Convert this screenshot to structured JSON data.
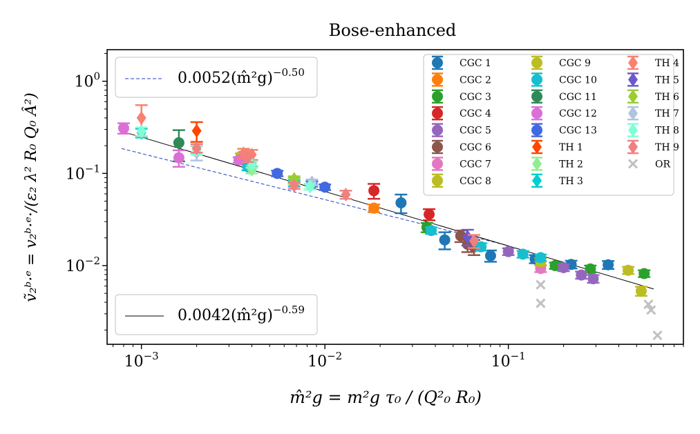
{
  "chart_data": {
    "type": "scatter",
    "title": "Bose-enhanced",
    "xlabel": "m̂²g = m²g τ₀ / (Q²₀ R₀)",
    "ylabel": "ṽ₂ᵇ·ᵉ = v₂ᵇ·ᵉ·/(ε₂ λ² R₀ Q₀ Â²)",
    "x_scale": "log",
    "y_scale": "log",
    "xlim": [
      0.00065,
      0.9
    ],
    "ylim": [
      0.0014,
      2.2
    ],
    "x_ticks": [
      {
        "value": 0.001,
        "label": "10^-3"
      },
      {
        "value": 0.01,
        "label": "10^-2"
      },
      {
        "value": 0.1,
        "label": "10^-1"
      }
    ],
    "y_ticks": [
      {
        "value": 0.01,
        "label": "10^-2"
      },
      {
        "value": 0.1,
        "label": "10^-1"
      },
      {
        "value": 1,
        "label": "10^0"
      }
    ],
    "fits": [
      {
        "name": "fit-dashed",
        "label": "0.0052(m̂²g)^-0.50",
        "coef": 0.0052,
        "exp": -0.5,
        "x_range": [
          0.00078,
          0.1
        ],
        "color": "#1f3fbf",
        "style": "dashed",
        "legend_position": "upper-left"
      },
      {
        "name": "fit-solid",
        "label": "0.0042(m̂²g)^-0.59",
        "coef": 0.0042,
        "exp": -0.59,
        "x_range": [
          0.00078,
          0.62
        ],
        "color": "#000000",
        "style": "solid",
        "legend_position": "lower-left"
      }
    ],
    "series": [
      {
        "name": "CGC 1",
        "color": "#1f77b4",
        "marker": "circle",
        "points": [
          [
            0.026,
            0.048,
            0.011
          ],
          [
            0.045,
            0.019,
            0.004
          ],
          [
            0.08,
            0.0128,
            0.0018
          ],
          [
            0.14,
            0.0118,
            0.0012
          ],
          [
            0.22,
            0.0103,
            0.001
          ],
          [
            0.35,
            0.0102,
            0.001
          ]
        ]
      },
      {
        "name": "CGC 2",
        "color": "#ff7f0e",
        "marker": "circle",
        "points": [
          [
            0.0185,
            0.042,
            0.004
          ]
        ]
      },
      {
        "name": "CGC 3",
        "color": "#2ca02c",
        "marker": "circle",
        "points": [
          [
            0.0068,
            0.083,
            0.006
          ],
          [
            0.036,
            0.026,
            0.003
          ],
          [
            0.18,
            0.01,
            0.0008
          ],
          [
            0.28,
            0.0092,
            0.0008
          ],
          [
            0.55,
            0.0082,
            0.0007
          ]
        ]
      },
      {
        "name": "CGC 4",
        "color": "#d62728",
        "marker": "circle",
        "points": [
          [
            0.0185,
            0.065,
            0.012
          ],
          [
            0.037,
            0.036,
            0.005
          ]
        ]
      },
      {
        "name": "CGC 5",
        "color": "#9467bd",
        "marker": "circle",
        "points": [
          [
            0.1,
            0.0142,
            0.0012
          ],
          [
            0.2,
            0.0095,
            0.0008
          ],
          [
            0.25,
            0.0079,
            0.0007
          ],
          [
            0.29,
            0.0072,
            0.0007
          ]
        ]
      },
      {
        "name": "CGC 6",
        "color": "#8c564b",
        "marker": "circle",
        "points": [
          [
            0.055,
            0.021,
            0.003
          ],
          [
            0.06,
            0.017,
            0.003
          ],
          [
            0.065,
            0.016,
            0.003
          ]
        ]
      },
      {
        "name": "CGC 7",
        "color": "#e377c2",
        "marker": "circle",
        "points": [
          [
            0.0036,
            0.138,
            0.01
          ],
          [
            0.15,
            0.0093,
            0.0008
          ]
        ]
      },
      {
        "name": "CGC 8",
        "color": "#bcbd22",
        "marker": "circle",
        "points": [
          [
            0.0035,
            0.155,
            0.01
          ],
          [
            0.45,
            0.0089,
            0.0008
          ],
          [
            0.53,
            0.0053,
            0.0006
          ]
        ]
      },
      {
        "name": "CGC 9",
        "color": "#bcbd22",
        "marker": "circle",
        "points": [
          [
            0.0037,
            0.16,
            0.012
          ],
          [
            0.15,
            0.011,
            0.001
          ]
        ]
      },
      {
        "name": "CGC 10",
        "color": "#17becf",
        "marker": "circle",
        "points": [
          [
            0.0038,
            0.118,
            0.01
          ],
          [
            0.0068,
            0.078,
            0.006
          ],
          [
            0.038,
            0.024,
            0.002
          ],
          [
            0.071,
            0.016,
            0.0015
          ],
          [
            0.12,
            0.0133,
            0.0011
          ],
          [
            0.15,
            0.0122,
            0.001
          ]
        ]
      },
      {
        "name": "CGC 11",
        "color": "#2e8b57",
        "marker": "circle",
        "points": [
          [
            0.0016,
            0.215,
            0.08
          ]
        ]
      },
      {
        "name": "CGC 12",
        "color": "#da70d6",
        "marker": "circle",
        "points": [
          [
            0.0008,
            0.31,
            0.04
          ],
          [
            0.0016,
            0.148,
            0.03
          ],
          [
            0.0034,
            0.14,
            0.01
          ]
        ]
      },
      {
        "name": "CGC 13",
        "color": "#4169e1",
        "marker": "circle",
        "points": [
          [
            0.0055,
            0.1,
            0.007
          ],
          [
            0.0085,
            0.077,
            0.005
          ],
          [
            0.01,
            0.071,
            0.005
          ]
        ]
      },
      {
        "name": "TH 1",
        "color": "#ff4500",
        "marker": "diamond",
        "points": [
          [
            0.002,
            0.29,
            0.07
          ]
        ]
      },
      {
        "name": "TH 2",
        "color": "#90ee90",
        "marker": "diamond",
        "points": [
          [
            0.004,
            0.11,
            0.01
          ],
          [
            0.0068,
            0.082,
            0.006
          ],
          [
            0.0083,
            0.072,
            0.005
          ]
        ]
      },
      {
        "name": "TH 3",
        "color": "#00ced1",
        "marker": "diamond",
        "points": [
          [
            0.001,
            0.275,
            0.03
          ],
          [
            0.004,
            0.128,
            0.012
          ]
        ]
      },
      {
        "name": "TH 4",
        "color": "#fa8072",
        "marker": "diamond",
        "points": [
          [
            0.001,
            0.4,
            0.15
          ],
          [
            0.0036,
            0.165,
            0.02
          ],
          [
            0.004,
            0.16,
            0.02
          ]
        ]
      },
      {
        "name": "TH 5",
        "color": "#6a5acd",
        "marker": "diamond",
        "points": [
          [
            0.06,
            0.0205,
            0.004
          ]
        ]
      },
      {
        "name": "TH 6",
        "color": "#9acd32",
        "marker": "diamond",
        "points": [
          [
            0.0068,
            0.087,
            0.006
          ]
        ]
      },
      {
        "name": "TH 7",
        "color": "#b0c4de",
        "marker": "diamond",
        "points": [
          [
            0.002,
            0.168,
            0.03
          ],
          [
            0.0085,
            0.08,
            0.006
          ]
        ]
      },
      {
        "name": "TH 8",
        "color": "#7fffd4",
        "marker": "diamond",
        "points": [
          [
            0.001,
            0.285,
            0.03
          ],
          [
            0.002,
            0.18,
            0.02
          ],
          [
            0.004,
            0.125,
            0.01
          ],
          [
            0.0083,
            0.072,
            0.005
          ]
        ]
      },
      {
        "name": "TH 9",
        "color": "#f08080",
        "marker": "diamond",
        "points": [
          [
            0.002,
            0.188,
            0.02
          ],
          [
            0.0038,
            0.148,
            0.015
          ],
          [
            0.0068,
            0.074,
            0.006
          ],
          [
            0.013,
            0.059,
            0.006
          ],
          [
            0.065,
            0.0185,
            0.003
          ]
        ]
      },
      {
        "name": "OR",
        "color": "#c0c0c0",
        "marker": "x",
        "points": [
          [
            0.15,
            0.0062,
            0
          ],
          [
            0.15,
            0.0039,
            0
          ],
          [
            0.58,
            0.0038,
            0
          ],
          [
            0.6,
            0.0033,
            0
          ],
          [
            0.65,
            0.00175,
            0
          ]
        ]
      }
    ],
    "legend_position": "top-right"
  }
}
